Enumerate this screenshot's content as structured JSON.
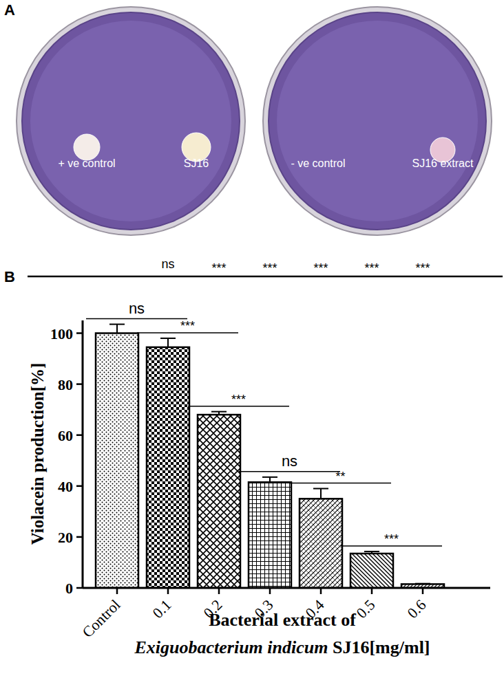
{
  "panel_labels": [
    "A",
    "B"
  ],
  "plates": [
    {
      "labels": [
        "+ ve control",
        "SJ16"
      ]
    },
    {
      "labels": [
        "- ve control",
        "SJ16 extract"
      ]
    }
  ],
  "chart_data": {
    "type": "bar",
    "y_label": "Violacein production[%]",
    "x_label": [
      "Bacterial extract of",
      "Exiguobacterium indicum SJ16[mg/ml]"
    ],
    "categories": [
      "Control",
      "0.1",
      "0.2",
      "0.3",
      "0.4",
      "0.5",
      "0.6"
    ],
    "values": [
      100,
      94.5,
      68,
      41.5,
      35,
      13.5,
      1.5
    ],
    "errors": [
      3.5,
      3.5,
      1.2,
      2,
      4,
      0.8,
      0.2
    ],
    "color": "#000000",
    "ylim": [
      0,
      105
    ],
    "yticks": [
      0,
      20,
      40,
      60,
      80,
      100
    ],
    "grid": false,
    "annotations": {
      "vs_control": [
        "ns",
        "***",
        "***",
        "***",
        "***",
        "***"
      ],
      "pairwise": [
        "ns",
        "***",
        "***",
        "ns",
        "**",
        "***"
      ]
    }
  }
}
